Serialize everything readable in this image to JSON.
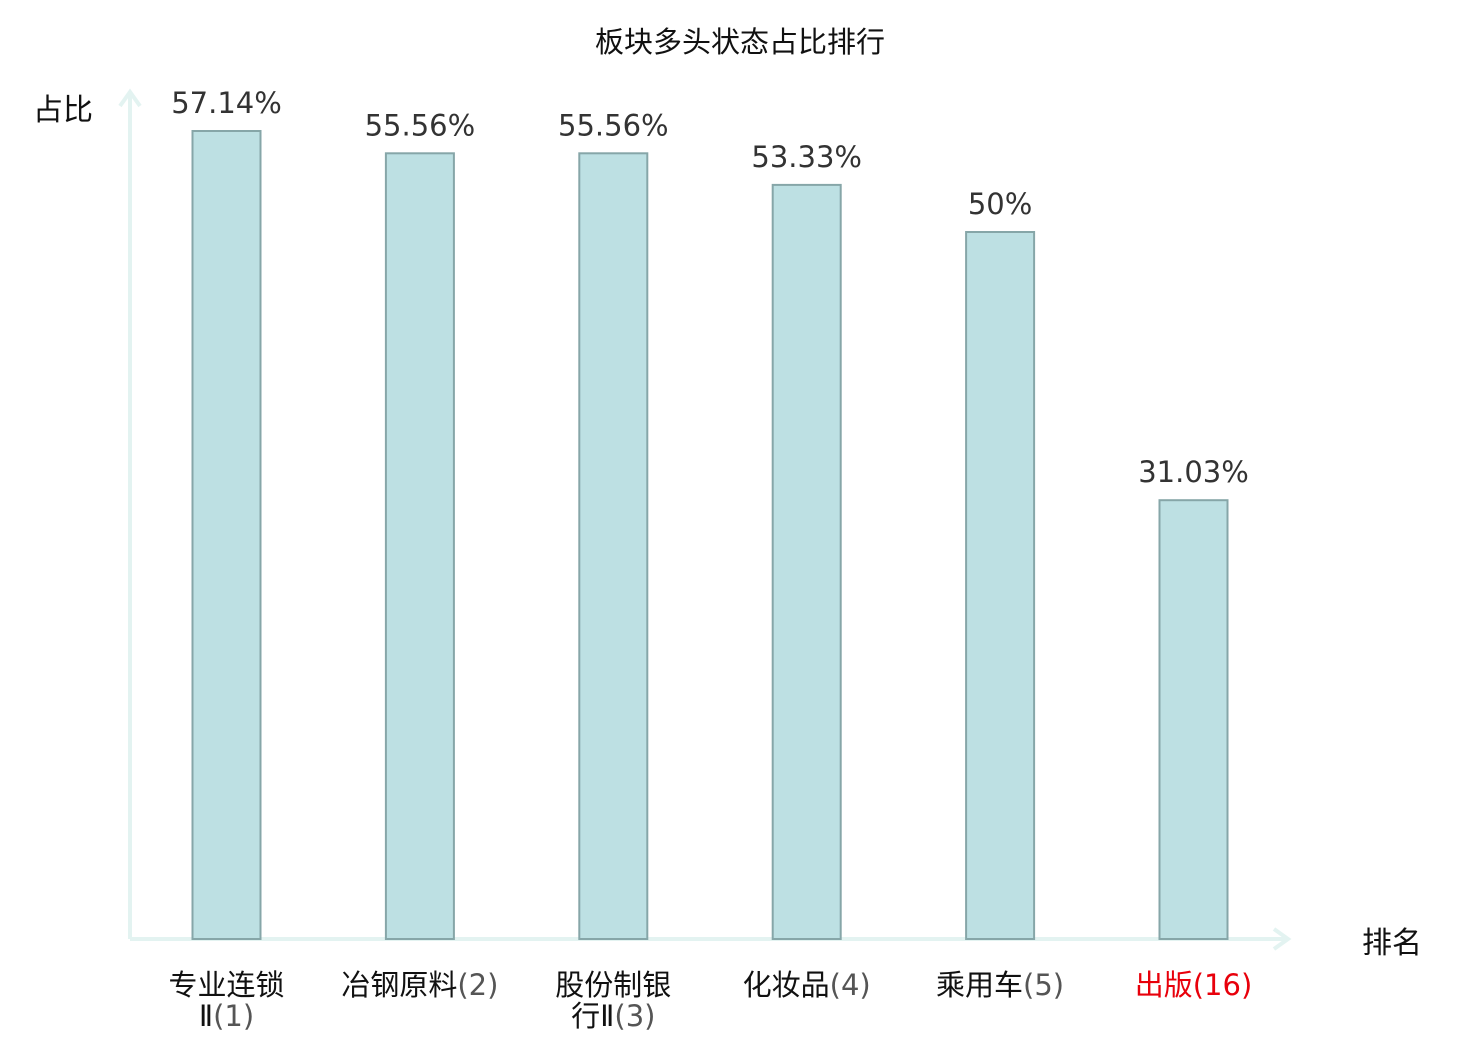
{
  "chart_data": {
    "type": "bar",
    "title": "板块多头状态占比排行",
    "ylabel": "占比",
    "xlabel": "排名",
    "categories": [
      {
        "name_lines": [
          "专业连锁",
          "Ⅱ"
        ],
        "rank": "(1)",
        "highlight": false
      },
      {
        "name_lines": [
          "冶钢原料"
        ],
        "rank": "(2)",
        "highlight": false
      },
      {
        "name_lines": [
          "股份制银",
          "行Ⅱ"
        ],
        "rank": "(3)",
        "highlight": false
      },
      {
        "name_lines": [
          "化妆品"
        ],
        "rank": "(4)",
        "highlight": false
      },
      {
        "name_lines": [
          "乘用车"
        ],
        "rank": "(5)",
        "highlight": false
      },
      {
        "name_lines": [
          "出版"
        ],
        "rank": "(16)",
        "highlight": true
      }
    ],
    "values": [
      57.14,
      55.56,
      55.56,
      53.33,
      50,
      31.03
    ],
    "value_labels": [
      "57.14%",
      "55.56%",
      "55.56%",
      "53.33%",
      "50%",
      "31.03%"
    ],
    "ylim": [
      0,
      57.14
    ],
    "grid": false,
    "colors": {
      "bar_fill": "#bde0e3",
      "bar_stroke": "#86a6a8",
      "axis": "#e3f3f1",
      "label_text": "#111111",
      "rank_text": "#555555",
      "value_text": "#333333",
      "highlight": "#e8000b"
    }
  }
}
